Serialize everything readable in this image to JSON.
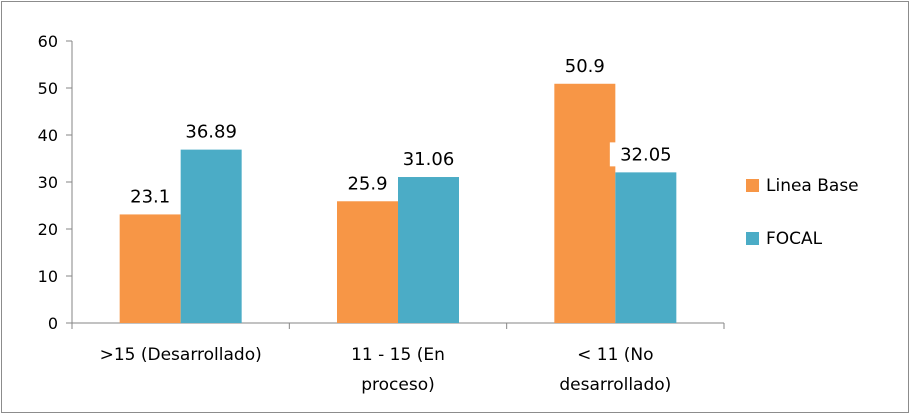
{
  "chart_data": {
    "type": "bar",
    "categories": [
      [
        "&gt;15 (Desarrollado)"
      ],
      [
        "11 - 15 (En",
        "proceso)"
      ],
      [
        "&lt; 11 (No",
        "desarrollado)"
      ]
    ],
    "series": [
      {
        "name": "Linea Base",
        "values": [
          23.1,
          25.9,
          50.9
        ],
        "labels": [
          "23.1",
          "25.9",
          "50.9"
        ],
        "color": "#F79646"
      },
      {
        "name": "FOCAL",
        "values": [
          36.89,
          31.06,
          32.05
        ],
        "labels": [
          "36.89",
          "31.06",
          "32.05"
        ],
        "color": "#4BACC6"
      }
    ],
    "yticks": [
      "0",
      "10",
      "20",
      "30",
      "40",
      "50",
      "60"
    ],
    "ylim": [
      0,
      60
    ],
    "grid": false,
    "legend_position": "right",
    "title": "",
    "xlabel": "",
    "ylabel": ""
  }
}
